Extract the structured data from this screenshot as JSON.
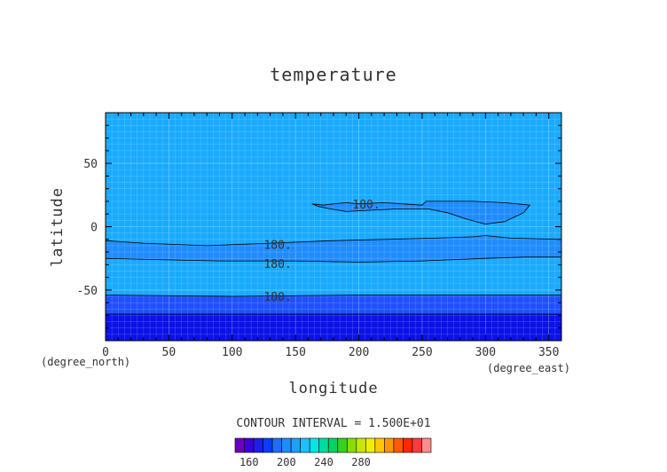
{
  "chart_data": {
    "type": "heatmap",
    "title": "temperature",
    "xlabel": "longitude",
    "ylabel": "latitude",
    "x_unit_label": "(degree_east)",
    "y_unit_label": "(degree_north)",
    "xlim": [
      0,
      360
    ],
    "ylim": [
      -90,
      90
    ],
    "x_ticks": [
      0,
      50,
      100,
      150,
      200,
      250,
      300,
      350
    ],
    "y_ticks": [
      -50,
      0,
      50
    ],
    "grid": true,
    "contour_interval_text": "CONTOUR INTERVAL = 1.500E+01",
    "contour_label_text": "180.",
    "contour_labels": [
      {
        "lon": 195,
        "lat": 18
      },
      {
        "lon": 125,
        "lat": -14
      },
      {
        "lon": 125,
        "lat": -29
      },
      {
        "lon": 125,
        "lat": -55
      }
    ],
    "bands": [
      {
        "name": "cold-pole-band",
        "color": "#0a12e6",
        "top": [
          [
            0,
            -69
          ],
          [
            360,
            -69
          ]
        ],
        "bottom": [
          [
            0,
            -90
          ],
          [
            360,
            -90
          ]
        ]
      },
      {
        "name": "south-band",
        "color": "#1e50ff",
        "top": [
          [
            0,
            -54
          ],
          [
            100,
            -55
          ],
          [
            200,
            -54
          ],
          [
            300,
            -54
          ],
          [
            360,
            -54
          ]
        ],
        "bottom": [
          [
            0,
            -69
          ],
          [
            360,
            -69
          ]
        ]
      },
      {
        "name": "midlat-band",
        "color": "#1f8bff",
        "top": [
          [
            0,
            -11
          ],
          [
            30,
            -13
          ],
          [
            80,
            -15
          ],
          [
            130,
            -13
          ],
          [
            180,
            -11
          ],
          [
            220,
            -10
          ],
          [
            260,
            -9
          ],
          [
            290,
            -8
          ],
          [
            300,
            -7
          ],
          [
            320,
            -9
          ],
          [
            360,
            -10
          ]
        ],
        "bottom": [
          [
            0,
            -25
          ],
          [
            40,
            -26
          ],
          [
            90,
            -27
          ],
          [
            150,
            -27
          ],
          [
            200,
            -28
          ],
          [
            250,
            -27
          ],
          [
            300,
            -25
          ],
          [
            330,
            -24
          ],
          [
            360,
            -24
          ]
        ]
      },
      {
        "name": "north-band",
        "color": "#1f8bff",
        "top": [
          [
            163,
            18
          ],
          [
            172,
            17
          ],
          [
            180,
            18
          ],
          [
            190,
            19
          ],
          [
            200,
            18
          ],
          [
            220,
            19
          ],
          [
            235,
            18
          ],
          [
            250,
            17
          ],
          [
            253,
            20
          ],
          [
            265,
            20
          ],
          [
            290,
            20
          ],
          [
            315,
            19
          ],
          [
            335,
            17
          ]
        ],
        "bottom": [
          [
            163,
            18
          ],
          [
            168,
            16
          ],
          [
            178,
            14
          ],
          [
            190,
            12
          ],
          [
            210,
            13
          ],
          [
            230,
            14
          ],
          [
            255,
            14
          ],
          [
            270,
            11
          ],
          [
            285,
            6
          ],
          [
            300,
            2
          ],
          [
            315,
            4
          ],
          [
            330,
            11
          ],
          [
            335,
            17
          ]
        ]
      }
    ],
    "colorbar": {
      "colors": [
        "#6a00bf",
        "#3c00dc",
        "#1e1ef0",
        "#0a3cff",
        "#1e6eff",
        "#1f8bff",
        "#1ea0ff",
        "#1ebeff",
        "#00e6e6",
        "#00dca0",
        "#00d264",
        "#32d21e",
        "#8cdc00",
        "#c8e600",
        "#f0f000",
        "#ffc800",
        "#ff9600",
        "#ff5a00",
        "#ff2800",
        "#ff3c3c",
        "#ff8c8c"
      ],
      "tick_labels": [
        "160",
        "200",
        "240",
        "280"
      ],
      "tick_positions": [
        1.5,
        5.5,
        9.5,
        13.5
      ]
    },
    "colors": {
      "background_fill": "#19aaff",
      "frame": "#000000",
      "contour_line": "#000000",
      "grid_line": "#ffffff"
    }
  }
}
